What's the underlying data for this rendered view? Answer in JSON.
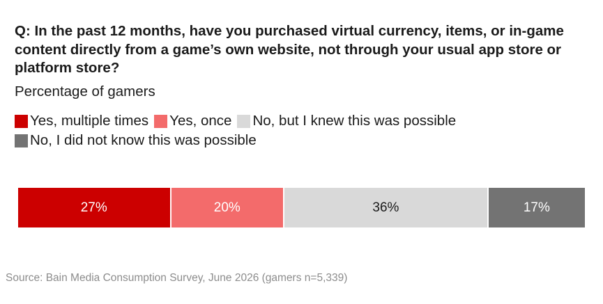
{
  "title": "Q: In the past 12 months, have you purchased virtual currency, items, or in-game content directly from a game’s own website, not through your usual app store or platform store?",
  "subtitle": "Percentage of gamers",
  "source": "Source: Bain Media Consumption Survey, June 2026 (gamers n=5,339)",
  "chart_data": {
    "type": "bar",
    "orientation": "horizontal-stacked-100",
    "title": "Q: In the past 12 months, have you purchased virtual currency, items, or in-game content directly from a game’s own website, not through your usual app store or platform store?",
    "subtitle": "Percentage of gamers",
    "xlabel": "",
    "ylabel": "",
    "legend_position": "top",
    "grid": false,
    "series": [
      {
        "name": "Yes, multiple times",
        "value": 27,
        "label": "27%",
        "color": "#cc0000",
        "text_color": "#ffffff"
      },
      {
        "name": "Yes, once",
        "value": 20,
        "label": "20%",
        "color": "#f36b6b",
        "text_color": "#ffffff"
      },
      {
        "name": "No, but I knew this was possible",
        "value": 36,
        "label": "36%",
        "color": "#d9d9d9",
        "text_color": "#1a1a1a"
      },
      {
        "name": "No, I did not know this was possible",
        "value": 17,
        "label": "17%",
        "color": "#737373",
        "text_color": "#ffffff"
      }
    ]
  }
}
